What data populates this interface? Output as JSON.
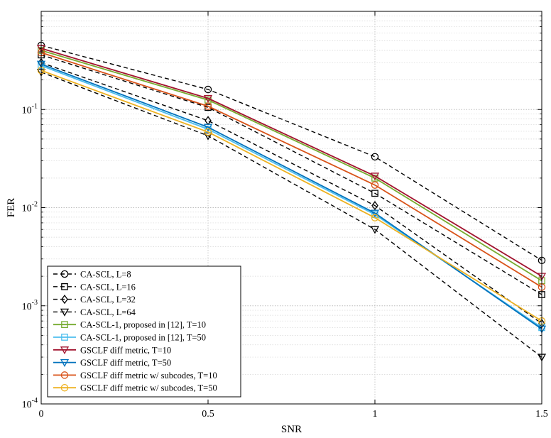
{
  "chart_data": {
    "type": "line",
    "title": "",
    "xlabel": "SNR",
    "ylabel": "FER",
    "x": [
      0,
      0.5,
      1,
      1.5
    ],
    "xlim": [
      0,
      1.5
    ],
    "ylim": [
      0.0001,
      1
    ],
    "yscale": "log",
    "grid": true,
    "legend_position": "bottom-left",
    "x_ticks": [
      "0",
      "0.5",
      "1",
      "1.5"
    ],
    "y_ticks": [
      {
        "base": "10",
        "exp": "-4",
        "value": 0.0001
      },
      {
        "base": "10",
        "exp": "-3",
        "value": 0.001
      },
      {
        "base": "10",
        "exp": "-2",
        "value": 0.01
      },
      {
        "base": "10",
        "exp": "-1",
        "value": 0.1
      }
    ],
    "series": [
      {
        "name": "CA-SCL, L=8",
        "color": "#000000",
        "dash": true,
        "marker": "circle",
        "values": [
          0.45,
          0.16,
          0.033,
          0.0029
        ]
      },
      {
        "name": "CA-SCL, L=16",
        "color": "#000000",
        "dash": true,
        "marker": "square",
        "values": [
          0.36,
          0.105,
          0.014,
          0.0013
        ]
      },
      {
        "name": "CA-SCL, L=32",
        "color": "#000000",
        "dash": true,
        "marker": "diamond",
        "values": [
          0.3,
          0.077,
          0.0105,
          0.00066
        ]
      },
      {
        "name": "CA-SCL, L=64",
        "color": "#000000",
        "dash": true,
        "marker": "triangle-down",
        "values": [
          0.24,
          0.054,
          0.006,
          0.0003
        ]
      },
      {
        "name": "CA-SCL-1, proposed in [12], T=10",
        "color": "#77ac30",
        "dash": false,
        "marker": "square",
        "values": [
          0.4,
          0.125,
          0.02,
          0.0018
        ]
      },
      {
        "name": "CA-SCL-1, proposed in [12], T=50",
        "color": "#4dbeee",
        "dash": false,
        "marker": "square",
        "values": [
          0.28,
          0.063,
          0.0085,
          0.0006
        ]
      },
      {
        "name": "GSCLF diff metric, T=10",
        "color": "#a2142f",
        "dash": false,
        "marker": "triangle-down",
        "values": [
          0.42,
          0.13,
          0.021,
          0.002
        ]
      },
      {
        "name": "GSCLF diff metric, T=50",
        "color": "#0072bd",
        "dash": false,
        "marker": "triangle-down",
        "values": [
          0.29,
          0.066,
          0.0088,
          0.00058
        ]
      },
      {
        "name": "GSCLF diff metric w/ subcodes, T=10",
        "color": "#d95319",
        "dash": false,
        "marker": "circle",
        "values": [
          0.38,
          0.108,
          0.017,
          0.00155
        ]
      },
      {
        "name": "GSCLF diff metric w/ subcodes, T=50",
        "color": "#edb120",
        "dash": false,
        "marker": "circle",
        "values": [
          0.25,
          0.059,
          0.0079,
          0.0007
        ]
      }
    ]
  }
}
